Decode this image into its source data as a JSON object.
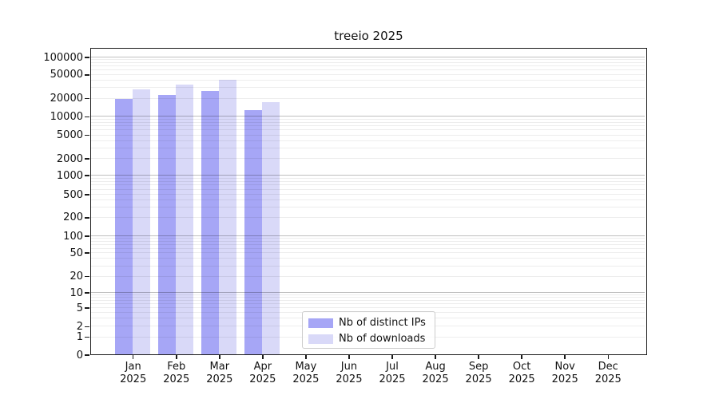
{
  "title": "treeio 2025",
  "chart_data": {
    "type": "bar",
    "title": "treeio 2025",
    "x_categories": [
      "Jan",
      "Feb",
      "Mar",
      "Apr",
      "May",
      "Jun",
      "Jul",
      "Aug",
      "Sep",
      "Oct",
      "Nov",
      "Dec"
    ],
    "x_year": "2025",
    "series": [
      {
        "name": "Nb of distinct IPs",
        "color": "#a6a6f6",
        "values": [
          19700,
          22600,
          26800,
          12700,
          0,
          0,
          0,
          0,
          0,
          0,
          0,
          0
        ]
      },
      {
        "name": "Nb of downloads",
        "color": "#d9d9f8",
        "values": [
          28500,
          33400,
          41000,
          17500,
          0,
          0,
          0,
          0,
          0,
          0,
          0,
          0
        ]
      }
    ],
    "yscale": "symlog",
    "ylim": [
      0,
      100000
    ],
    "yticks": [
      100000,
      50000,
      20000,
      10000,
      5000,
      2000,
      1000,
      500,
      200,
      100,
      50,
      20,
      10,
      5,
      2,
      1,
      0
    ],
    "grid": true,
    "legend": {
      "position": "lower center"
    },
    "colors": {
      "spine": "#1a1a1a",
      "grid_major": "rgba(0,0,0,0.25)",
      "grid_minor": "rgba(0,0,0,0.07)",
      "background": "#ffffff"
    }
  }
}
